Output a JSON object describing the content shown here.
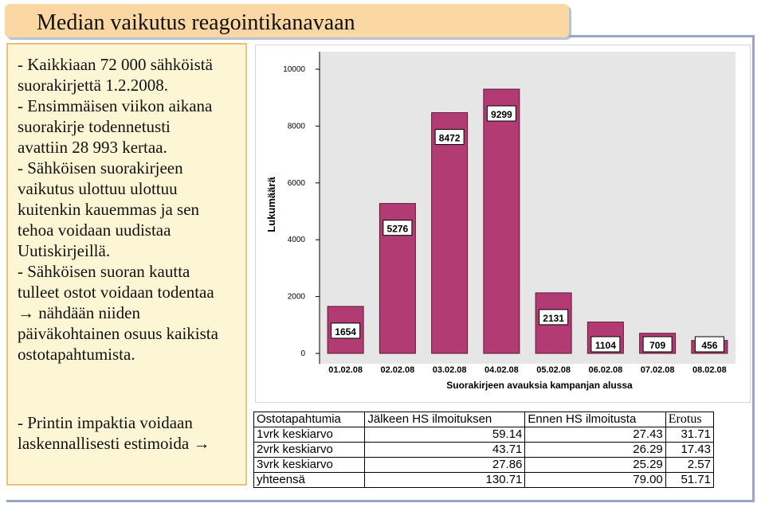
{
  "slide": {
    "title": "Median vaikutus reagointikanavaan",
    "text_lines": [
      "- Kaikkiaan 72 000 sähköistä",
      "suorakirjettä 1.2.2008.",
      "- Ensimmäisen viikon aikana",
      "suorakirje todennetusti",
      "avattiin 28 993 kertaa.",
      "- Sähköisen suorakirjeen",
      "vaikutus ulottuu ulottuu",
      "kuitenkin kauemmas ja sen",
      "tehoa voidaan uudistaa",
      "Uutiskirjeillä.",
      "- Sähköisen suoran kautta",
      "tulleet ostot voidaan todentaa",
      "→ nähdään niiden",
      "päiväkohtainen osuus kaikista",
      "ostotapahtumista."
    ],
    "bottom_lines": [
      "- Printin impaktia voidaan",
      "laskennallisesti estimoida →"
    ]
  },
  "chart_data": {
    "type": "bar",
    "title": "",
    "categories": [
      "01.02.08",
      "02.02.08",
      "03.02.08",
      "04.02.08",
      "05.02.08",
      "06.02.08",
      "07.02.08",
      "08.02.08"
    ],
    "values": [
      1654,
      5276,
      8472,
      9299,
      2131,
      1104,
      709,
      456
    ],
    "data_labels": [
      "1654",
      "5276",
      "8472",
      "9299",
      "2131",
      "1104",
      "709",
      "456"
    ],
    "xlabel": "Suorakirjeen avauksia kampanjan alussa",
    "ylabel": "Lukumäärä",
    "ylim": [
      0,
      10000
    ],
    "yticks": [
      0,
      2000,
      4000,
      6000,
      8000,
      10000
    ],
    "ytick_labels": [
      "0",
      "2000",
      "4000",
      "6000",
      "8000",
      "10000"
    ],
    "grid": false,
    "bar_color": "#b33b73",
    "plot_background": "#e6e6e6"
  },
  "table": {
    "headers": [
      "Ostotapahtumia",
      "Jälkeen HS ilmoituksen",
      "Ennen HS ilmoitusta",
      "Erotus"
    ],
    "rows": [
      [
        "1vrk keskiarvo",
        "59.14",
        "27.43",
        "31.71"
      ],
      [
        "2vrk keskiarvo",
        "43.71",
        "26.29",
        "17.43"
      ],
      [
        "3vrk keskiarvo",
        "27.86",
        "25.29",
        "2.57"
      ],
      [
        "yhteensä",
        "130.71",
        "79.00",
        "51.71"
      ]
    ]
  }
}
